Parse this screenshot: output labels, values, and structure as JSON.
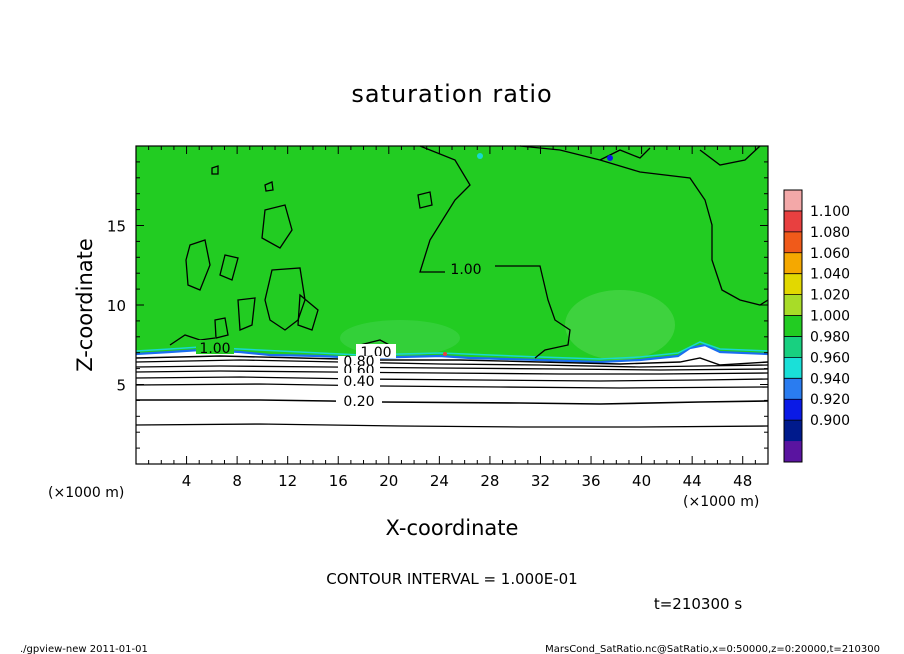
{
  "chart_data": {
    "type": "heatmap",
    "title": "saturation ratio",
    "xlabel": "X-coordinate",
    "ylabel": "Z-coordinate",
    "x_unit_left": "(×1000 m)",
    "x_unit_right": "(×1000 m)",
    "xlim": [
      0,
      50
    ],
    "ylim": [
      0,
      20
    ],
    "x_ticks": [
      "4",
      "8",
      "12",
      "16",
      "20",
      "24",
      "28",
      "32",
      "36",
      "40",
      "44",
      "48"
    ],
    "y_ticks": [
      "5",
      "10",
      "15"
    ],
    "colorbar": {
      "levels": [
        "1.100",
        "1.080",
        "1.060",
        "1.040",
        "1.020",
        "1.000",
        "0.980",
        "0.960",
        "0.940",
        "0.920",
        "0.900"
      ],
      "colors": [
        "#f3a8a8",
        "#e84040",
        "#f05a1a",
        "#f5a800",
        "#e2d800",
        "#a8dc28",
        "#22cc22",
        "#18d080",
        "#1ae0d8",
        "#2a7cf0",
        "#0a1ae6",
        "#001a8c",
        "#5a14a0"
      ]
    },
    "contour_labels": [
      "1.00",
      "1.00",
      "1.00",
      "0.80",
      "0.60",
      "0.40",
      "0.20"
    ],
    "contour_interval_text": "CONTOUR INTERVAL = 1.000E-01",
    "time_text": "t=210300 s",
    "fill_color": "#22cc22",
    "footer_left": "./gpview-new   2011-01-01",
    "footer_right": "MarsCond_SatRatio.nc@SatRatio,x=0:50000,z=0:20000,t=210300"
  }
}
